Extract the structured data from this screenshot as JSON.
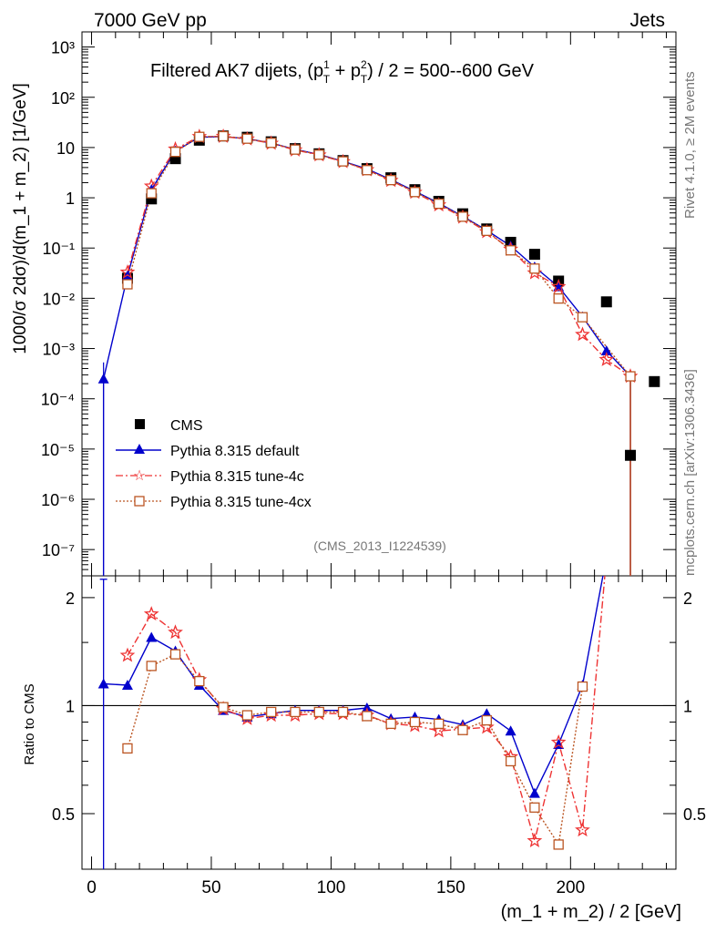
{
  "header": {
    "left": "7000 GeV pp",
    "right": "Jets"
  },
  "side_labels": {
    "rivet": "Rivet 4.1.0, ≥ 2M events",
    "mcplots": "mcplots.cern.ch [arXiv:1306.3436]"
  },
  "chart_data": [
    {
      "type": "scatter",
      "panel": "main",
      "title_main": "Filtered AK7 dijets, (p",
      "title_sub1": "T",
      "title_sup1": "1",
      "title_mid": " + p",
      "title_sub2": "T",
      "title_sup2": "2",
      "title_end": ") / 2 = 500--600 GeV",
      "ylabel": "1000/σ   2dσ)/d(m_1 + m_2) [1/GeV]",
      "yscale": "log",
      "ylim": [
        3e-08,
        2000
      ],
      "xlim": [
        -4,
        244
      ],
      "ytick_labels": [
        "10⁻⁷",
        "10⁻⁶",
        "10⁻⁵",
        "10⁻⁴",
        "10⁻³",
        "10⁻²",
        "10⁻¹",
        "1",
        "10",
        "10²",
        "10³"
      ],
      "ytick_values": [
        1e-07,
        1e-06,
        1e-05,
        0.0001,
        0.001,
        0.01,
        0.1,
        1,
        10,
        100,
        1000
      ],
      "analysis": "(CMS_2013_I1224539)",
      "legend": [
        "CMS",
        "Pythia 8.315 default",
        "Pythia 8.315 tune-4c",
        "Pythia 8.315 tune-4cx"
      ],
      "legend_position": "lower-left",
      "series": [
        {
          "name": "CMS",
          "color": "#000000",
          "marker": "square",
          "x": [
            15,
            25,
            35,
            45,
            55,
            65,
            75,
            85,
            95,
            105,
            115,
            125,
            135,
            145,
            155,
            165,
            175,
            185,
            195,
            215,
            225,
            235
          ],
          "y": [
            0.025,
            0.95,
            6.0,
            14,
            17,
            16,
            13,
            9.5,
            7.5,
            5.5,
            3.8,
            2.5,
            1.45,
            0.85,
            0.48,
            0.24,
            0.13,
            0.075,
            0.022,
            0.0085,
            7.5e-06,
            0.00022
          ]
        },
        {
          "name": "Pythia 8.315 default",
          "color": "#0000cc",
          "marker": "triangle",
          "line": "solid",
          "x": [
            5,
            15,
            25,
            35,
            45,
            55,
            65,
            75,
            85,
            95,
            105,
            115,
            125,
            135,
            145,
            155,
            165,
            175,
            185,
            195,
            205,
            215,
            225
          ],
          "y": [
            0.00025,
            0.028,
            1.45,
            8.5,
            16,
            16.5,
            15,
            12.3,
            9.2,
            7.3,
            5.3,
            3.75,
            2.3,
            1.35,
            0.78,
            0.43,
            0.225,
            0.11,
            0.042,
            0.017,
            0.0043,
            0.0009,
            0.00028
          ]
        },
        {
          "name": "Pythia 8.315 tune-4c",
          "color": "#ee3333",
          "marker": "star",
          "line": "dashdot",
          "x": [
            15,
            25,
            35,
            45,
            55,
            65,
            75,
            85,
            95,
            105,
            115,
            125,
            135,
            145,
            155,
            165,
            175,
            185,
            195,
            205,
            215,
            225
          ],
          "y": [
            0.033,
            1.7,
            9.3,
            16.5,
            16.6,
            14.7,
            12.1,
            8.9,
            7.1,
            5.2,
            3.6,
            2.2,
            1.28,
            0.72,
            0.41,
            0.21,
            0.094,
            0.032,
            0.017,
            0.0019,
            0.0006,
            0.00028
          ]
        },
        {
          "name": "Pythia 8.315 tune-4cx",
          "color": "#bb5522",
          "marker": "open-square",
          "line": "dotted",
          "x": [
            15,
            25,
            35,
            45,
            55,
            65,
            75,
            85,
            95,
            105,
            115,
            125,
            135,
            145,
            155,
            165,
            175,
            185,
            195,
            205,
            225
          ],
          "y": [
            0.019,
            1.23,
            8.2,
            16.3,
            16.8,
            15.0,
            12.4,
            9.1,
            7.2,
            5.3,
            3.55,
            2.25,
            1.3,
            0.76,
            0.42,
            0.22,
            0.09,
            0.039,
            0.0099,
            0.0042,
            0.00028
          ]
        }
      ]
    },
    {
      "type": "line",
      "panel": "ratio",
      "xlabel": "(m_1 + m_2) / 2 [GeV]",
      "ylabel": "Ratio to CMS",
      "ylim": [
        0.35,
        2.3
      ],
      "xlim": [
        -4,
        244
      ],
      "xtick_labels": [
        "0",
        "50",
        "100",
        "150",
        "200"
      ],
      "xtick_values": [
        0,
        50,
        100,
        150,
        200
      ],
      "ytick_labels": [
        "0.5",
        "1",
        "2"
      ],
      "ytick_values": [
        0.5,
        1,
        2
      ],
      "series": [
        {
          "name": "Pythia 8.315 default",
          "color": "#0000cc",
          "x": [
            5,
            15,
            25,
            35,
            45,
            55,
            65,
            75,
            85,
            95,
            105,
            115,
            125,
            135,
            145,
            155,
            165,
            175,
            185,
            195,
            205,
            215
          ],
          "y": [
            1.15,
            1.14,
            1.55,
            1.42,
            1.14,
            0.97,
            0.93,
            0.95,
            0.97,
            0.97,
            0.97,
            0.985,
            0.92,
            0.93,
            0.915,
            0.885,
            0.95,
            0.85,
            0.57,
            0.78,
            1.14,
            2.6
          ]
        },
        {
          "name": "Pythia 8.315 tune-4c",
          "color": "#ee3333",
          "x": [
            15,
            25,
            35,
            45,
            55,
            65,
            75,
            85,
            95,
            105,
            115,
            125,
            135,
            145,
            155,
            165,
            175,
            185,
            195,
            205,
            215
          ],
          "y": [
            1.38,
            1.8,
            1.6,
            1.18,
            0.98,
            0.92,
            0.94,
            0.94,
            0.95,
            0.95,
            0.94,
            0.89,
            0.88,
            0.85,
            0.86,
            0.87,
            0.72,
            0.42,
            0.79,
            0.45,
            2.6
          ]
        },
        {
          "name": "Pythia 8.315 tune-4cx",
          "color": "#bb5522",
          "x": [
            15,
            25,
            35,
            45,
            55,
            65,
            75,
            85,
            95,
            105,
            115,
            125,
            135,
            145,
            155,
            165,
            175,
            185,
            195,
            205
          ],
          "y": [
            0.76,
            1.29,
            1.39,
            1.17,
            0.99,
            0.94,
            0.96,
            0.96,
            0.96,
            0.96,
            0.935,
            0.89,
            0.9,
            0.89,
            0.855,
            0.91,
            0.7,
            0.52,
            0.41,
            1.13
          ]
        }
      ]
    }
  ]
}
